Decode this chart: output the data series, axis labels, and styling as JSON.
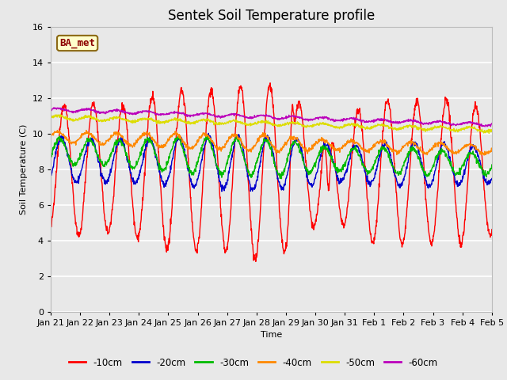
{
  "title": "Sentek Soil Temperature profile",
  "xlabel": "Time",
  "ylabel": "Soil Temperature (C)",
  "ylim": [
    0,
    16
  ],
  "yticks": [
    0,
    2,
    4,
    6,
    8,
    10,
    12,
    14,
    16
  ],
  "bg_color": "#e8e8e8",
  "grid_color": "#ffffff",
  "legend_label": "BA_met",
  "legend_label_color": "#8b0000",
  "legend_box_facecolor": "#ffffcc",
  "legend_box_edgecolor": "#8b6914",
  "series": [
    {
      "label": "-10cm",
      "color": "#ff0000"
    },
    {
      "label": "-20cm",
      "color": "#0000cc"
    },
    {
      "label": "-30cm",
      "color": "#00bb00"
    },
    {
      "label": "-40cm",
      "color": "#ff8800"
    },
    {
      "label": "-50cm",
      "color": "#dddd00"
    },
    {
      "label": "-60cm",
      "color": "#bb00bb"
    }
  ],
  "date_labels": [
    "Jan 21",
    "Jan 22",
    "Jan 23",
    "Jan 24",
    "Jan 25",
    "Jan 26",
    "Jan 27",
    "Jan 28",
    "Jan 29",
    "Jan 30",
    "Jan 31",
    "Feb 1",
    "Feb 2",
    "Feb 3",
    "Feb 4",
    "Feb 5"
  ],
  "title_fontsize": 12,
  "axis_fontsize": 8,
  "tick_fontsize": 8
}
